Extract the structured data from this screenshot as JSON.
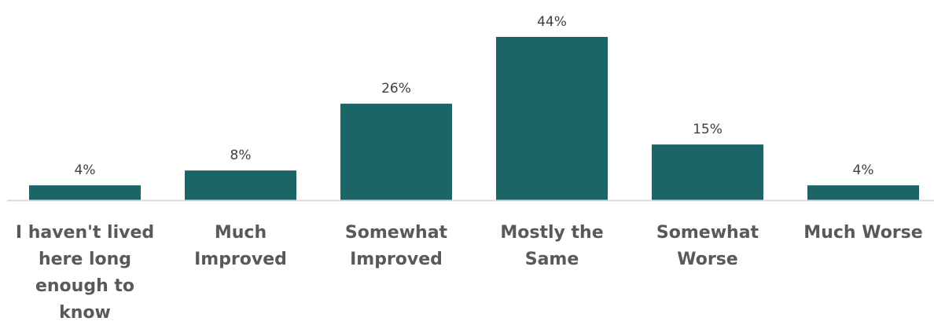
{
  "chart_data": {
    "type": "bar",
    "categories": [
      "I haven't lived here long enough to know",
      "Much Improved",
      "Somewhat Improved",
      "Mostly the Same",
      "Somewhat Worse",
      "Much Worse"
    ],
    "category_lines": [
      [
        "I haven't lived",
        "here long",
        "enough to",
        "know"
      ],
      [
        "Much",
        "Improved"
      ],
      [
        "Somewhat",
        "Improved"
      ],
      [
        "Mostly the",
        "Same"
      ],
      [
        "Somewhat",
        "Worse"
      ],
      [
        "Much Worse"
      ]
    ],
    "values": [
      4,
      8,
      26,
      44,
      15,
      4
    ],
    "data_labels": [
      "4%",
      "8%",
      "26%",
      "44%",
      "15%",
      "4%"
    ],
    "ylim": [
      0,
      44
    ],
    "grid": false,
    "bar_color": "#1b6566",
    "axis_color": "#d9d9d9"
  }
}
